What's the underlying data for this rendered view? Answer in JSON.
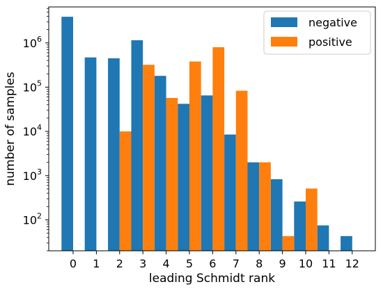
{
  "chart_data": {
    "type": "bar",
    "title": "",
    "xlabel": "leading Schmidt rank",
    "ylabel": "number of samples",
    "yscale": "log",
    "ylim": [
      20,
      6500000
    ],
    "categories": [
      "0",
      "1",
      "2",
      "3",
      "4",
      "5",
      "6",
      "7",
      "8",
      "9",
      "10",
      "11",
      "12"
    ],
    "y_ticks": [
      {
        "base": "10",
        "exp": "2"
      },
      {
        "base": "10",
        "exp": "3"
      },
      {
        "base": "10",
        "exp": "4"
      },
      {
        "base": "10",
        "exp": "5"
      },
      {
        "base": "10",
        "exp": "6"
      }
    ],
    "grid": false,
    "legend_position": "top-right",
    "series": [
      {
        "name": "negative",
        "color": "#1f77b4",
        "values": [
          3900000,
          470000,
          450000,
          1150000,
          180000,
          42000,
          65000,
          8500,
          2000,
          830,
          260,
          75,
          43
        ]
      },
      {
        "name": "positive",
        "color": "#ff7f0e",
        "values": [
          null,
          null,
          10000,
          320000,
          57000,
          380000,
          800000,
          83000,
          2000,
          43,
          510,
          null,
          null
        ]
      }
    ]
  }
}
